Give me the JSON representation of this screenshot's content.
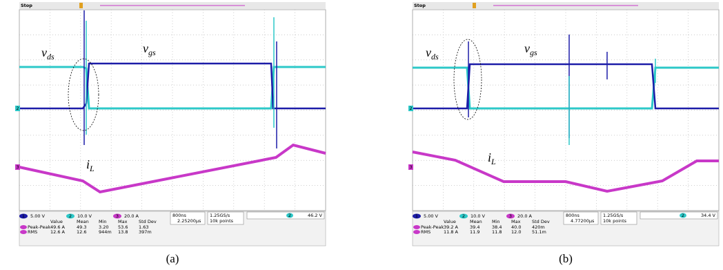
{
  "panels": [
    {
      "status": "Stop",
      "channel_ids": [
        "1",
        "2",
        "3"
      ],
      "labels": {
        "vds": {
          "main": "v",
          "sub": "ds"
        },
        "vgs": {
          "main": "v",
          "sub": "gs"
        },
        "il": {
          "main": "i",
          "sub": "L"
        }
      },
      "scales": [
        "5.00 V",
        "10.0 V",
        "20.0 A"
      ],
      "timebase": "800ns",
      "delay": "2.25200µs",
      "sample_rate": "1.25GS/s",
      "points": "10k points",
      "trigger_channel": "2",
      "trigger_level": "46.2 V",
      "measure": {
        "header": [
          "Value",
          "Mean",
          "Min",
          "Max",
          "Std Dev"
        ],
        "rows": [
          [
            "Peak-Peak",
            "49.6 A",
            "49.3",
            "3.20",
            "53.6",
            "1.63"
          ],
          [
            "RMS",
            "12.6 A",
            "12.6",
            "944m",
            "13.8",
            "397m"
          ]
        ]
      },
      "caption": "(a)"
    },
    {
      "status": "Stop",
      "channel_ids": [
        "1",
        "2",
        "3"
      ],
      "labels": {
        "vds": {
          "main": "v",
          "sub": "ds"
        },
        "vgs": {
          "main": "v",
          "sub": "gs"
        },
        "il": {
          "main": "i",
          "sub": "L"
        }
      },
      "scales": [
        "5.00 V",
        "10.0 V",
        "20.0 A"
      ],
      "timebase": "800ns",
      "delay": "4.77200µs",
      "sample_rate": "1.25GS/s",
      "points": "10k points",
      "trigger_channel": "2",
      "trigger_level": "34.4 V",
      "measure": {
        "header": [
          "Value",
          "Mean",
          "Min",
          "Max",
          "Std Dev"
        ],
        "rows": [
          [
            "Peak-Peak",
            "39.2 A",
            "39.4",
            "38.4",
            "40.0",
            "420m"
          ],
          [
            "RMS",
            "11.8 A",
            "11.9",
            "11.8",
            "12.0",
            "51.1m"
          ]
        ]
      },
      "caption": "(b)"
    }
  ]
}
